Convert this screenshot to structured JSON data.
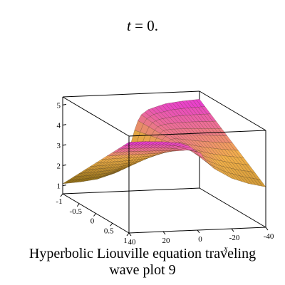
{
  "title": {
    "var": "t",
    "rest": " = 0."
  },
  "caption": {
    "line1": "Hyperbolic Liouville equation  traveling",
    "line2": "wave plot 9"
  },
  "chart_data": {
    "type": "surface3d",
    "z_ticks": [
      "1",
      "2",
      "3",
      "4",
      "5"
    ],
    "y_ticks": [
      "-1",
      "-0.5",
      "0",
      "0.5",
      "1"
    ],
    "x_ticks": [
      "40",
      "20",
      "0",
      "-20",
      "-40"
    ],
    "xlabel": "x",
    "xlim": [
      -40,
      40
    ],
    "ylim": [
      -1,
      1
    ],
    "zlim": [
      0.6,
      5.4
    ],
    "surface": {
      "x": [
        -40,
        -30,
        -20,
        -10,
        -5,
        -2,
        0,
        2,
        5,
        10,
        20,
        30,
        40
      ],
      "z_at_y_minus_1": [
        5.0,
        4.95,
        4.85,
        4.6,
        4.3,
        3.6,
        3.0,
        2.4,
        1.9,
        1.5,
        1.25,
        1.15,
        1.1
      ],
      "z_at_y_plus_1": [
        2.6,
        2.8,
        3.1,
        3.6,
        4.0,
        4.4,
        4.5,
        4.6,
        4.8,
        4.95,
        5.05,
        5.1,
        5.1
      ]
    },
    "colors": {
      "high": "#e838d6",
      "mid": "#f2b04a",
      "low": "#8a6a10"
    }
  }
}
